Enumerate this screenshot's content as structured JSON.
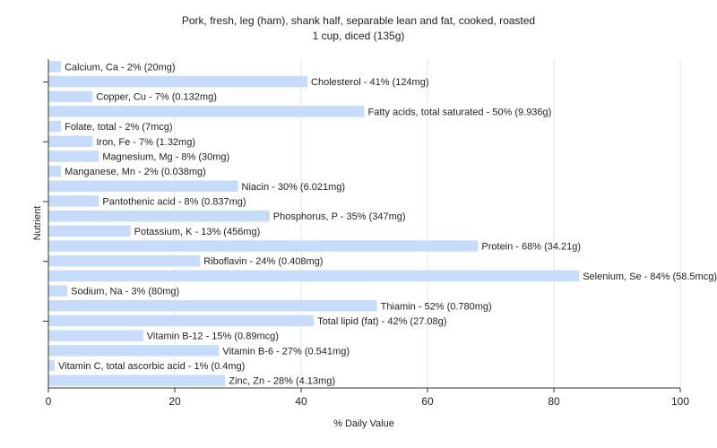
{
  "chart_data": {
    "type": "bar",
    "orientation": "horizontal",
    "title": "Pork, fresh, leg (ham), shank half, separable lean and fat, cooked, roasted",
    "subtitle": "1 cup, diced (135g)",
    "xlabel": "% Daily Value",
    "ylabel": "Nutrient",
    "xlim": [
      0,
      100
    ],
    "xticks": [
      0,
      20,
      40,
      60,
      80,
      100
    ],
    "grid": true,
    "bar_color": "#c6dcfa",
    "categories": [
      "Calcium, Ca",
      "Cholesterol",
      "Copper, Cu",
      "Fatty acids, total saturated",
      "Folate, total",
      "Iron, Fe",
      "Magnesium, Mg",
      "Manganese, Mn",
      "Niacin",
      "Pantothenic acid",
      "Phosphorus, P",
      "Potassium, K",
      "Protein",
      "Riboflavin",
      "Selenium, Se",
      "Sodium, Na",
      "Thiamin",
      "Total lipid (fat)",
      "Vitamin B-12",
      "Vitamin B-6",
      "Vitamin C, total ascorbic acid",
      "Zinc, Zn"
    ],
    "values": [
      2,
      41,
      7,
      50,
      2,
      7,
      8,
      2,
      30,
      8,
      35,
      13,
      68,
      24,
      84,
      3,
      52,
      42,
      15,
      27,
      1,
      28
    ],
    "labels": [
      "Calcium, Ca - 2% (20mg)",
      "Cholesterol - 41% (124mg)",
      "Copper, Cu - 7% (0.132mg)",
      "Fatty acids, total saturated - 50% (9.936g)",
      "Folate, total - 2% (7mcg)",
      "Iron, Fe - 7% (1.32mg)",
      "Magnesium, Mg - 8% (30mg)",
      "Manganese, Mn - 2% (0.038mg)",
      "Niacin - 30% (6.021mg)",
      "Pantothenic acid - 8% (0.837mg)",
      "Phosphorus, P - 35% (347mg)",
      "Potassium, K - 13% (456mg)",
      "Protein - 68% (34.21g)",
      "Riboflavin - 24% (0.408mg)",
      "Selenium, Se - 84% (58.5mcg)",
      "Sodium, Na - 3% (80mg)",
      "Thiamin - 52% (0.780mg)",
      "Total lipid (fat) - 42% (27.08g)",
      "Vitamin B-12 - 15% (0.89mcg)",
      "Vitamin B-6 - 27% (0.541mg)",
      "Vitamin C, total ascorbic acid - 1% (0.4mg)",
      "Zinc, Zn - 28% (4.13mg)"
    ]
  }
}
